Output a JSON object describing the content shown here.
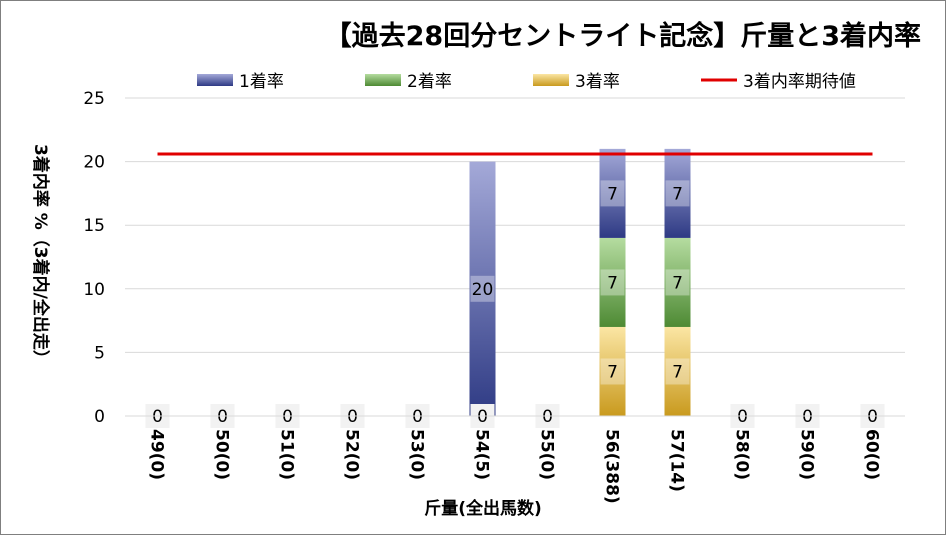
{
  "chart_data": {
    "type": "bar",
    "stacked": true,
    "title": "【過去28回分セントライト記念】斤量と3着内率",
    "xlabel": "斤量(全出馬数)",
    "ylabel": "3着内率 %（3着内/全出走）",
    "ylim": [
      0,
      25
    ],
    "yticks": [
      0,
      5,
      10,
      15,
      20,
      25
    ],
    "grid": true,
    "legend_position": "top",
    "categories": [
      "49(0)",
      "50(0)",
      "51(0)",
      "52(0)",
      "53(0)",
      "54(5)",
      "55(0)",
      "56(388)",
      "57(14)",
      "58(0)",
      "59(0)",
      "60(0)"
    ],
    "series": [
      {
        "name": "1着率",
        "values": [
          0,
          0,
          0,
          0,
          0,
          20,
          0,
          7,
          7,
          0,
          0,
          0
        ],
        "color": "#2e3a84",
        "color_light": "#a4a9d8"
      },
      {
        "name": "2着率",
        "values": [
          0,
          0,
          0,
          0,
          0,
          0,
          0,
          7,
          7,
          0,
          0,
          0
        ],
        "color": "#4e8a34",
        "color_light": "#b5dca0"
      },
      {
        "name": "3着率",
        "values": [
          0,
          0,
          0,
          0,
          0,
          0,
          0,
          7,
          7,
          0,
          0,
          0
        ],
        "color": "#c99a1e",
        "color_light": "#fbe6a4"
      }
    ],
    "data_labels": {
      "1着率": [
        "",
        "",
        "",
        "",
        "",
        "20",
        "",
        "7",
        "7",
        "",
        "",
        ""
      ],
      "2着率": [
        "",
        "",
        "",
        "",
        "",
        "",
        "",
        "7",
        "7",
        "",
        "",
        ""
      ],
      "3着率": [
        "",
        "",
        "",
        "",
        "",
        "",
        "",
        "7",
        "7",
        "",
        "",
        ""
      ],
      "base": [
        "0",
        "0",
        "0",
        "0",
        "0",
        "0",
        "0",
        "",
        "",
        "0",
        "0",
        "0"
      ]
    },
    "reference_line": {
      "name": "3着内率期待値",
      "value": 20.6,
      "color": "#e00000"
    }
  }
}
